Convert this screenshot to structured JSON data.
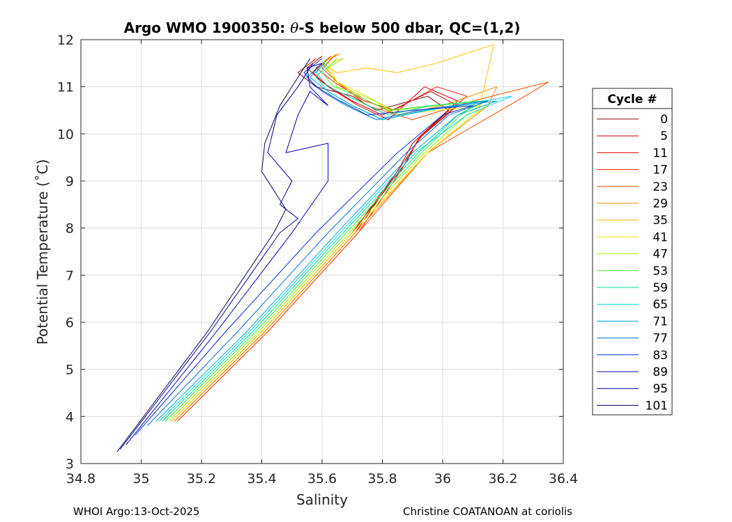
{
  "chart_data": {
    "type": "line",
    "title_prefix": "Argo WMO 1900350: ",
    "title_theta": "θ",
    "title_suffix": "-S below 500 dbar,  QC=(1,2)",
    "xlabel": "Salinity",
    "ylabel": "Potential Temperature (˚C)",
    "xlim": [
      34.8,
      36.4
    ],
    "ylim": [
      3,
      12
    ],
    "xticks": [
      "34.8",
      "35",
      "35.2",
      "35.4",
      "35.6",
      "35.8",
      "36",
      "36.2",
      "36.4"
    ],
    "yticks": [
      "3",
      "4",
      "5",
      "6",
      "7",
      "8",
      "9",
      "10",
      "11",
      "12"
    ],
    "grid": true,
    "legend_title": "Cycle #",
    "legend_position": "right, outside",
    "series": [
      {
        "name": "0",
        "color": "#800000",
        "x": [
          35.1,
          35.4,
          35.7,
          35.88,
          35.92,
          36.02,
          35.95,
          35.78,
          35.7,
          35.58,
          35.52,
          35.58
        ],
        "y": [
          3.9,
          5.8,
          7.9,
          9.4,
          9.9,
          10.5,
          10.8,
          10.5,
          10.8,
          11.0,
          11.3,
          11.6
        ]
      },
      {
        "name": "5",
        "color": "#bf0000",
        "x": [
          35.1,
          35.4,
          35.7,
          35.86,
          35.93,
          36.05,
          35.96,
          35.8,
          35.7,
          35.6,
          35.55,
          35.6
        ],
        "y": [
          3.9,
          5.8,
          7.9,
          9.3,
          9.95,
          10.6,
          10.9,
          10.4,
          10.7,
          11.1,
          11.4,
          11.65
        ]
      },
      {
        "name": "11",
        "color": "#e00000",
        "x": [
          35.11,
          35.41,
          35.71,
          35.85,
          35.9,
          36.05,
          35.94,
          35.82,
          35.72,
          35.62,
          35.57,
          35.62
        ],
        "y": [
          3.9,
          5.8,
          7.9,
          9.2,
          9.8,
          10.7,
          11.0,
          10.3,
          10.6,
          11.0,
          11.3,
          11.6
        ]
      },
      {
        "name": "17",
        "color": "#ff1a00",
        "x": [
          35.12,
          35.42,
          35.72,
          35.86,
          35.92,
          36.08,
          35.98,
          35.84,
          35.74,
          35.64,
          35.58,
          35.63
        ],
        "y": [
          3.9,
          5.8,
          7.9,
          9.2,
          9.9,
          10.8,
          11.0,
          10.5,
          10.7,
          11.1,
          11.4,
          11.65
        ]
      },
      {
        "name": "23",
        "color": "#ff4d00",
        "x": [
          35.12,
          35.42,
          35.72,
          35.95,
          36.3,
          36.35,
          36.1,
          35.9,
          35.75,
          35.65,
          35.6,
          35.65
        ],
        "y": [
          3.9,
          5.8,
          7.9,
          9.6,
          10.9,
          11.1,
          10.7,
          10.3,
          10.6,
          11.1,
          11.4,
          11.7
        ]
      },
      {
        "name": "29",
        "color": "#ff8c00",
        "x": [
          35.11,
          35.41,
          35.71,
          35.95,
          36.15,
          36.18,
          36.0,
          35.85,
          35.75,
          35.65,
          35.6,
          35.66
        ],
        "y": [
          3.9,
          5.8,
          7.9,
          9.6,
          10.6,
          11.0,
          10.6,
          10.4,
          10.7,
          11.1,
          11.5,
          11.7
        ]
      },
      {
        "name": "35",
        "color": "#ffc000",
        "x": [
          35.1,
          35.4,
          35.7,
          35.95,
          36.12,
          36.17,
          35.98,
          35.85,
          35.75,
          35.65,
          35.6,
          35.65
        ],
        "y": [
          3.9,
          5.8,
          7.9,
          9.6,
          10.5,
          11.9,
          11.5,
          11.3,
          11.4,
          11.3,
          11.5,
          11.7
        ]
      },
      {
        "name": "41",
        "color": "#e8e800",
        "x": [
          35.1,
          35.4,
          35.7,
          35.95,
          36.1,
          36.15,
          35.98,
          35.85,
          35.75,
          35.65,
          35.62,
          35.67
        ],
        "y": [
          3.9,
          5.8,
          7.9,
          9.6,
          10.4,
          10.6,
          10.5,
          10.4,
          10.8,
          11.1,
          11.5,
          11.6
        ]
      },
      {
        "name": "47",
        "color": "#a0f000",
        "x": [
          35.09,
          35.39,
          35.69,
          35.94,
          36.08,
          36.14,
          35.98,
          35.84,
          35.74,
          35.65,
          35.62,
          35.67
        ],
        "y": [
          3.9,
          5.8,
          7.9,
          9.6,
          10.4,
          10.7,
          10.6,
          10.5,
          10.8,
          11.0,
          11.4,
          11.6
        ]
      },
      {
        "name": "53",
        "color": "#40f040",
        "x": [
          35.08,
          35.38,
          35.68,
          35.93,
          36.06,
          36.12,
          35.96,
          35.82,
          35.72,
          35.64,
          35.6,
          35.65
        ],
        "y": [
          3.9,
          5.8,
          7.9,
          9.6,
          10.4,
          10.7,
          10.6,
          10.5,
          10.8,
          11.0,
          11.3,
          11.6
        ]
      },
      {
        "name": "59",
        "color": "#00e090",
        "x": [
          35.07,
          35.37,
          35.67,
          35.92,
          36.05,
          36.14,
          35.96,
          35.82,
          35.72,
          35.62,
          35.58,
          35.62
        ],
        "y": [
          3.9,
          5.8,
          7.9,
          9.6,
          10.4,
          10.7,
          10.6,
          10.4,
          10.7,
          11.0,
          11.3,
          11.6
        ]
      },
      {
        "name": "65",
        "color": "#00d8e8",
        "x": [
          35.06,
          35.36,
          35.66,
          35.91,
          36.08,
          36.23,
          35.95,
          35.8,
          35.7,
          35.62,
          35.58,
          35.62
        ],
        "y": [
          3.9,
          5.8,
          7.9,
          9.6,
          10.4,
          10.8,
          10.5,
          10.3,
          10.6,
          10.9,
          11.2,
          11.5
        ]
      },
      {
        "name": "71",
        "color": "#00a8e0",
        "x": [
          35.05,
          35.35,
          35.65,
          35.9,
          36.05,
          36.18,
          35.94,
          35.8,
          35.7,
          35.62,
          35.56,
          35.61
        ],
        "y": [
          3.9,
          5.8,
          7.9,
          9.6,
          10.4,
          10.7,
          10.5,
          10.3,
          10.6,
          10.9,
          11.2,
          11.5
        ]
      },
      {
        "name": "77",
        "color": "#0070d8",
        "x": [
          35.02,
          35.32,
          35.62,
          35.88,
          36.02,
          36.15,
          35.92,
          35.78,
          35.68,
          35.6,
          35.55,
          35.6
        ],
        "y": [
          3.8,
          5.8,
          7.9,
          9.6,
          10.4,
          10.7,
          10.5,
          10.3,
          10.6,
          10.9,
          11.2,
          11.5
        ]
      },
      {
        "name": "83",
        "color": "#0030d0",
        "x": [
          34.98,
          35.28,
          35.58,
          35.85,
          36.0,
          36.1,
          35.9,
          35.75,
          35.66,
          35.58,
          35.54,
          35.6
        ],
        "y": [
          3.6,
          5.8,
          7.9,
          9.6,
          10.4,
          10.6,
          10.5,
          10.4,
          10.7,
          11.0,
          11.3,
          11.6
        ]
      },
      {
        "name": "89",
        "color": "#0000b8",
        "x": [
          34.95,
          35.25,
          35.5,
          35.62,
          35.62,
          35.48,
          35.52,
          35.56,
          35.62,
          35.56,
          35.55,
          35.6
        ],
        "y": [
          3.4,
          5.8,
          7.9,
          9.0,
          9.8,
          9.6,
          10.4,
          10.9,
          10.6,
          11.0,
          11.4,
          11.5
        ]
      },
      {
        "name": "95",
        "color": "#000090",
        "x": [
          34.93,
          35.23,
          35.46,
          35.52,
          35.46,
          35.5,
          35.42,
          35.45,
          35.52,
          35.57
        ],
        "y": [
          3.3,
          5.8,
          7.9,
          8.2,
          8.5,
          9.0,
          9.6,
          10.4,
          11.0,
          11.5
        ]
      },
      {
        "name": "101",
        "color": "#000060",
        "x": [
          34.92,
          35.22,
          35.44,
          35.48,
          35.44,
          35.4,
          35.41,
          35.46,
          35.52,
          35.56
        ],
        "y": [
          3.25,
          5.8,
          7.9,
          8.4,
          8.8,
          9.2,
          9.8,
          10.6,
          11.2,
          11.6
        ]
      }
    ]
  },
  "footer": {
    "left": "WHOI Argo:13-Oct-2025",
    "right": "Christine COATANOAN at coriolis"
  }
}
